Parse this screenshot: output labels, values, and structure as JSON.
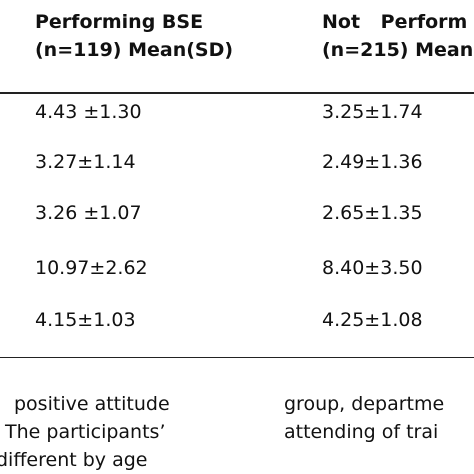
{
  "table": {
    "header": [
      [
        "Performing BSE",
        "(n=119) Mean(SD)"
      ],
      [
        "Not Perform",
        "(n=215) Mean"
      ]
    ],
    "rows": [
      [
        "4.43 ±1.30",
        "3.25±1.74"
      ],
      [
        "3.27±1.14",
        "2.49±1.36"
      ],
      [
        "3.26 ±1.07",
        "2.65±1.35"
      ],
      [
        "10.97±2.62",
        "8.40±3.50"
      ],
      [
        "4.15±1.03",
        "4.25±1.08"
      ]
    ]
  },
  "body": {
    "left": [
      "positive attitude",
      "The participants’",
      "different by age"
    ],
    "right": [
      "group, departme",
      "attending of trai"
    ]
  }
}
